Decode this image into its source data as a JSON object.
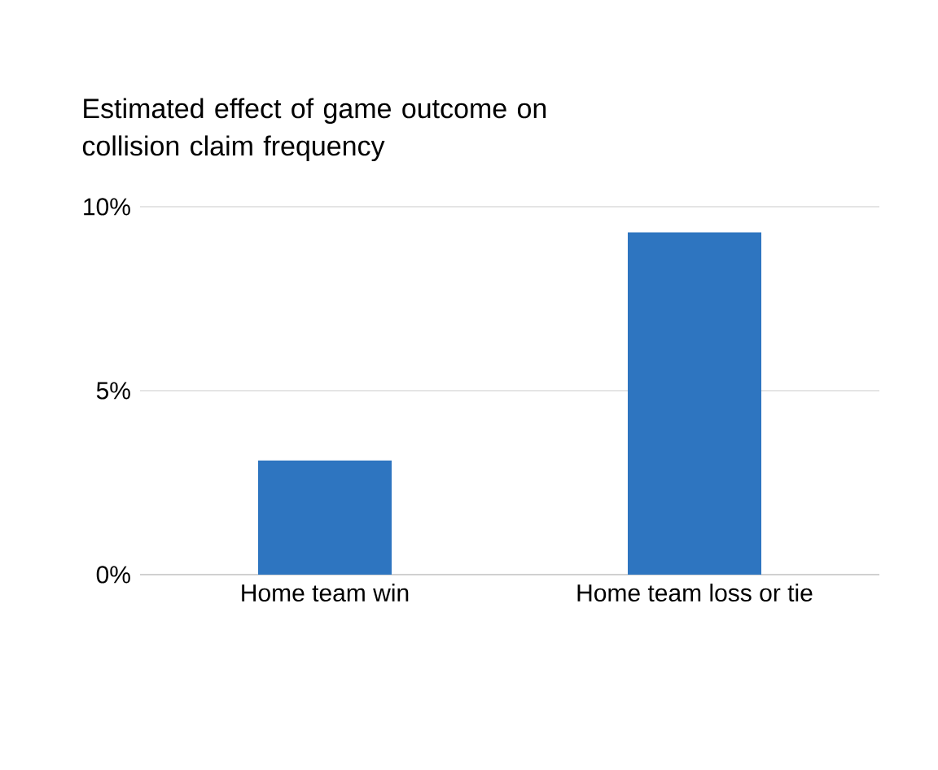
{
  "chart_data": {
    "type": "bar",
    "title": "Estimated effect of game outcome on collision claim frequency",
    "categories": [
      "Home team win",
      "Home team loss or tie"
    ],
    "values": [
      3.1,
      9.3
    ],
    "color": "#2e75c0",
    "ylim": [
      0,
      10
    ],
    "yticks": [
      {
        "value": 0,
        "label": "0%"
      },
      {
        "value": 5,
        "label": "5%"
      },
      {
        "value": 10,
        "label": "10%"
      }
    ],
    "grid": "y"
  }
}
